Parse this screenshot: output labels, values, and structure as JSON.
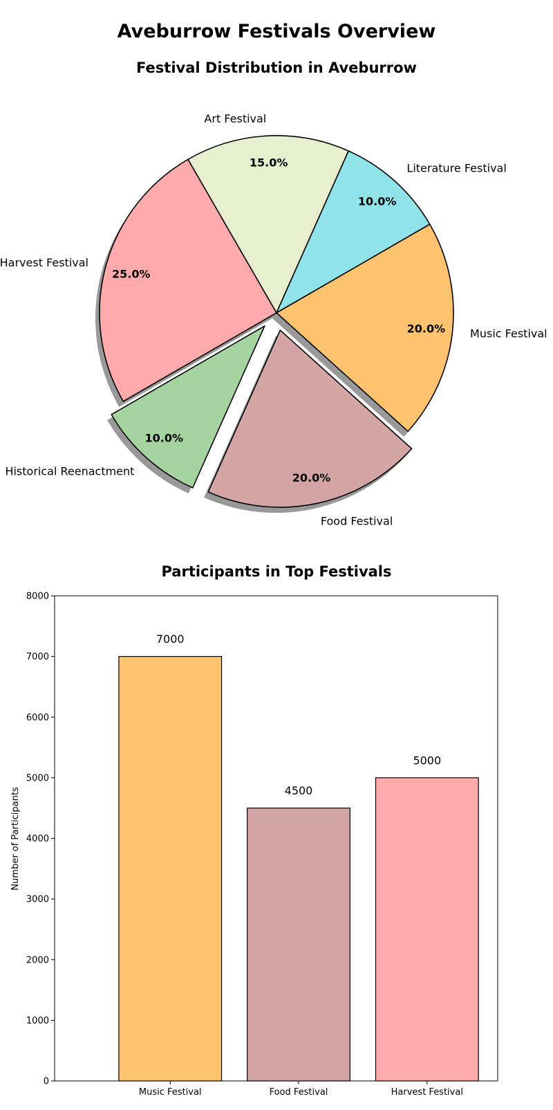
{
  "page_title": "Aveburrow Festivals Overview",
  "chart_data": [
    {
      "type": "pie",
      "title": "Festival Distribution in Aveburrow",
      "labels": [
        "Music Festival",
        "Food Festival",
        "Historical Reenactment",
        "Harvest Festival",
        "Art Festival",
        "Literature Festival"
      ],
      "values": [
        20,
        20,
        10,
        25,
        15,
        10
      ],
      "pct_labels": [
        "20.0%",
        "20.0%",
        "10.0%",
        "25.0%",
        "15.0%",
        "10.0%"
      ],
      "colors": [
        "#fdc36f",
        "#d4a5a5",
        "#a6d4a0",
        "#ffaaab",
        "#e7efcf",
        "#8fe3e9"
      ],
      "exploded": [
        "Food Festival",
        "Historical Reenactment"
      ],
      "start_angle_deg": 30,
      "direction": "clockwise",
      "shadow": true
    },
    {
      "type": "bar",
      "title": "Participants in Top Festivals",
      "categories": [
        "Music Festival",
        "Food Festival",
        "Harvest Festival"
      ],
      "values": [
        7000,
        4500,
        5000
      ],
      "value_labels": [
        "7000",
        "4500",
        "5000"
      ],
      "colors": [
        "#fdc36f",
        "#d4a5a5",
        "#ffaaab"
      ],
      "ylabel": "Number of Participants",
      "xlabel": "",
      "ylim": [
        0,
        8000
      ],
      "yticks": [
        "0",
        "1000",
        "2000",
        "3000",
        "4000",
        "5000",
        "6000",
        "7000",
        "8000"
      ],
      "grid": false
    }
  ]
}
